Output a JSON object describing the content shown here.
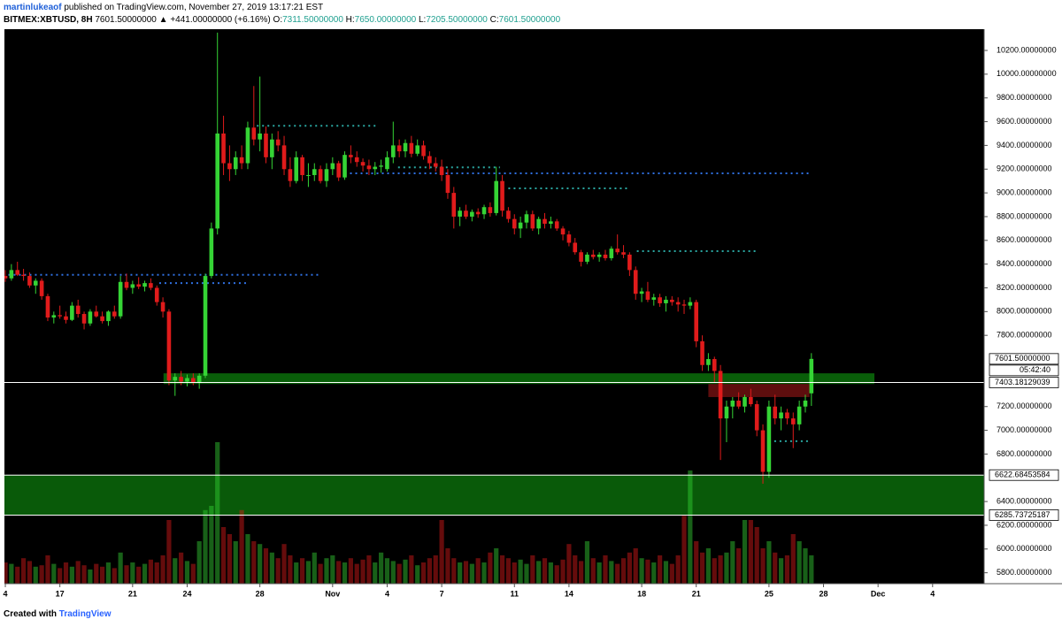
{
  "header": {
    "author": "martinlukeaof",
    "byline": "published on TradingView.com, November 27, 2019 13:17:21 EST",
    "symbol": "BITMEX:XBTUSD, 8H",
    "last": "7601.50000000",
    "change": "▲ +441.00000000 (+6.16%)",
    "ohlc": [
      {
        "label": "O:",
        "value": "7311.50000000"
      },
      {
        "label": "H:",
        "value": "7650.00000000"
      },
      {
        "label": "L:",
        "value": "7205.50000000"
      },
      {
        "label": "C:",
        "value": "7601.50000000"
      }
    ]
  },
  "footer": {
    "text": "Created with",
    "brand": "TradingView"
  },
  "chart_data": {
    "type": "candlestick",
    "up_color": "#35d435",
    "down_color": "#e01b1b",
    "ylim": [
      5708,
      10379
    ],
    "xlim": [
      -0.15,
      161.5
    ],
    "yticks": [
      {
        "value": 10200,
        "label": "10200.00000000"
      },
      {
        "value": 10000,
        "label": "10000.00000000"
      },
      {
        "value": 9800,
        "label": "9800.00000000"
      },
      {
        "value": 9600,
        "label": "9600.00000000"
      },
      {
        "value": 9400,
        "label": "9400.00000000"
      },
      {
        "value": 9200,
        "label": "9200.00000000"
      },
      {
        "value": 9000,
        "label": "9000.00000000"
      },
      {
        "value": 8800,
        "label": "8800.00000000"
      },
      {
        "value": 8600,
        "label": "8600.00000000"
      },
      {
        "value": 8400,
        "label": "8400.00000000"
      },
      {
        "value": 8200,
        "label": "8200.00000000"
      },
      {
        "value": 8000,
        "label": "8000.00000000"
      },
      {
        "value": 7800,
        "label": "7800.00000000"
      },
      {
        "value": 7200,
        "label": "7200.00000000"
      },
      {
        "value": 7000,
        "label": "7000.00000000"
      },
      {
        "value": 6800,
        "label": "6800.00000000"
      },
      {
        "value": 6400,
        "label": "6400.00000000"
      },
      {
        "value": 6200,
        "label": "6200.00000000"
      },
      {
        "value": 6000,
        "label": "6000.00000000"
      },
      {
        "value": 5800,
        "label": "5800.00000000"
      }
    ],
    "xticks": [
      {
        "value": 0,
        "label": "4"
      },
      {
        "value": 9,
        "label": "17"
      },
      {
        "value": 21,
        "label": "21"
      },
      {
        "value": 30,
        "label": "24"
      },
      {
        "value": 42,
        "label": "28"
      },
      {
        "value": 54,
        "label": "Nov"
      },
      {
        "value": 63,
        "label": "4"
      },
      {
        "value": 72,
        "label": "7"
      },
      {
        "value": 84,
        "label": "11"
      },
      {
        "value": 93,
        "label": "14"
      },
      {
        "value": 105,
        "label": "18"
      },
      {
        "value": 114,
        "label": "21"
      },
      {
        "value": 126,
        "label": "25"
      },
      {
        "value": 135,
        "label": "28"
      },
      {
        "value": 144,
        "label": "Dec"
      },
      {
        "value": 153,
        "label": "4"
      }
    ],
    "candles": [
      [
        8300,
        8350,
        8250,
        8280
      ],
      [
        8280,
        8400,
        8260,
        8350
      ],
      [
        8350,
        8420,
        8300,
        8310
      ],
      [
        8310,
        8360,
        8260,
        8300
      ],
      [
        8300,
        8330,
        8200,
        8220
      ],
      [
        8220,
        8280,
        8150,
        8260
      ],
      [
        8260,
        8280,
        8100,
        8130
      ],
      [
        8130,
        8150,
        7920,
        7950
      ],
      [
        7950,
        8000,
        7900,
        7970
      ],
      [
        7970,
        8050,
        7940,
        7960
      ],
      [
        7960,
        8000,
        7900,
        7930
      ],
      [
        7930,
        8080,
        7920,
        8050
      ],
      [
        8050,
        8100,
        7950,
        7980
      ],
      [
        7980,
        8000,
        7850,
        7900
      ],
      [
        7900,
        8020,
        7880,
        8000
      ],
      [
        8000,
        8050,
        7950,
        7960
      ],
      [
        7960,
        8000,
        7900,
        7920
      ],
      [
        7920,
        8010,
        7880,
        8000
      ],
      [
        8000,
        8050,
        7940,
        7960
      ],
      [
        7960,
        8300,
        7940,
        8250
      ],
      [
        8250,
        8320,
        8180,
        8200
      ],
      [
        8200,
        8260,
        8150,
        8230
      ],
      [
        8230,
        8290,
        8190,
        8210
      ],
      [
        8210,
        8260,
        8170,
        8240
      ],
      [
        8240,
        8280,
        8180,
        8200
      ],
      [
        8200,
        8220,
        8050,
        8080
      ],
      [
        8080,
        8120,
        7950,
        8000
      ],
      [
        8000,
        8020,
        7380,
        7420
      ],
      [
        7420,
        7480,
        7290,
        7450
      ],
      [
        7450,
        7500,
        7380,
        7410
      ],
      [
        7410,
        7470,
        7370,
        7440
      ],
      [
        7440,
        7480,
        7380,
        7400
      ],
      [
        7400,
        7480,
        7350,
        7460
      ],
      [
        7460,
        8320,
        7440,
        8300
      ],
      [
        8300,
        8750,
        8280,
        8700
      ],
      [
        8700,
        10350,
        8650,
        9500
      ],
      [
        9500,
        9650,
        9150,
        9250
      ],
      [
        9250,
        9400,
        9100,
        9200
      ],
      [
        9200,
        9350,
        9150,
        9300
      ],
      [
        9300,
        9400,
        9200,
        9250
      ],
      [
        9250,
        9600,
        9200,
        9550
      ],
      [
        9550,
        9900,
        9400,
        9450
      ],
      [
        9450,
        9980,
        9350,
        9500
      ],
      [
        9500,
        9560,
        9250,
        9300
      ],
      [
        9300,
        9500,
        9200,
        9450
      ],
      [
        9450,
        9520,
        9350,
        9400
      ],
      [
        9400,
        9480,
        9150,
        9200
      ],
      [
        9200,
        9300,
        9050,
        9100
      ],
      [
        9100,
        9350,
        9080,
        9300
      ],
      [
        9300,
        9320,
        9100,
        9150
      ],
      [
        9150,
        9250,
        9050,
        9150
      ],
      [
        9150,
        9250,
        9100,
        9200
      ],
      [
        9200,
        9230,
        9080,
        9100
      ],
      [
        9100,
        9250,
        9050,
        9200
      ],
      [
        9200,
        9300,
        9150,
        9250
      ],
      [
        9250,
        9270,
        9100,
        9130
      ],
      [
        9130,
        9350,
        9110,
        9320
      ],
      [
        9320,
        9400,
        9250,
        9300
      ],
      [
        9300,
        9350,
        9220,
        9260
      ],
      [
        9260,
        9290,
        9180,
        9230
      ],
      [
        9230,
        9280,
        9150,
        9200
      ],
      [
        9200,
        9260,
        9150,
        9220
      ],
      [
        9220,
        9280,
        9170,
        9230
      ],
      [
        9200,
        9350,
        9180,
        9300
      ],
      [
        9300,
        9600,
        9250,
        9400
      ],
      [
        9400,
        9450,
        9300,
        9350
      ],
      [
        9350,
        9450,
        9300,
        9420
      ],
      [
        9420,
        9480,
        9300,
        9330
      ],
      [
        9330,
        9450,
        9310,
        9400
      ],
      [
        9400,
        9440,
        9280,
        9310
      ],
      [
        9310,
        9350,
        9200,
        9250
      ],
      [
        9250,
        9300,
        9180,
        9220
      ],
      [
        9220,
        9280,
        9100,
        9150
      ],
      [
        9150,
        9200,
        8950,
        9000
      ],
      [
        9000,
        9050,
        8700,
        8800
      ],
      [
        8800,
        8880,
        8720,
        8850
      ],
      [
        8850,
        8900,
        8780,
        8800
      ],
      [
        8800,
        8860,
        8760,
        8840
      ],
      [
        8840,
        8870,
        8790,
        8820
      ],
      [
        8820,
        8900,
        8780,
        8880
      ],
      [
        8880,
        8920,
        8800,
        8830
      ],
      [
        8830,
        9220,
        8810,
        9100
      ],
      [
        9100,
        9150,
        8800,
        8850
      ],
      [
        8850,
        8880,
        8750,
        8780
      ],
      [
        8780,
        8820,
        8650,
        8700
      ],
      [
        8700,
        8800,
        8620,
        8750
      ],
      [
        8750,
        8850,
        8700,
        8820
      ],
      [
        8820,
        8850,
        8680,
        8700
      ],
      [
        8700,
        8800,
        8650,
        8780
      ],
      [
        8780,
        8830,
        8700,
        8740
      ],
      [
        8740,
        8800,
        8700,
        8760
      ],
      [
        8760,
        8780,
        8680,
        8700
      ],
      [
        8700,
        8720,
        8600,
        8650
      ],
      [
        8650,
        8680,
        8550,
        8580
      ],
      [
        8580,
        8620,
        8480,
        8500
      ],
      [
        8500,
        8520,
        8380,
        8420
      ],
      [
        8420,
        8500,
        8400,
        8480
      ],
      [
        8480,
        8520,
        8440,
        8460
      ],
      [
        8460,
        8500,
        8420,
        8480
      ],
      [
        8480,
        8520,
        8430,
        8450
      ],
      [
        8450,
        8550,
        8430,
        8530
      ],
      [
        8530,
        8650,
        8480,
        8500
      ],
      [
        8500,
        8560,
        8450,
        8480
      ],
      [
        8480,
        8500,
        8300,
        8350
      ],
      [
        8350,
        8380,
        8100,
        8150
      ],
      [
        8150,
        8200,
        8080,
        8170
      ],
      [
        8170,
        8250,
        8080,
        8100
      ],
      [
        8100,
        8150,
        8050,
        8120
      ],
      [
        8120,
        8150,
        8040,
        8070
      ],
      [
        8070,
        8130,
        8000,
        8100
      ],
      [
        8100,
        8130,
        8050,
        8080
      ],
      [
        8080,
        8120,
        8000,
        8060
      ],
      [
        8060,
        8100,
        7980,
        8050
      ],
      [
        8050,
        8120,
        8020,
        8080
      ],
      [
        8080,
        8100,
        7700,
        7750
      ],
      [
        7750,
        7800,
        7500,
        7550
      ],
      [
        7550,
        7650,
        7500,
        7600
      ],
      [
        7600,
        7620,
        7400,
        7500
      ],
      [
        7500,
        7550,
        6750,
        7100
      ],
      [
        7100,
        7250,
        6900,
        7200
      ],
      [
        7200,
        7280,
        7100,
        7250
      ],
      [
        7250,
        7320,
        7180,
        7200
      ],
      [
        7200,
        7300,
        7150,
        7280
      ],
      [
        7280,
        7350,
        7200,
        7220
      ],
      [
        7220,
        7250,
        6950,
        7000
      ],
      [
        7000,
        7050,
        6550,
        6650
      ],
      [
        6650,
        7250,
        6600,
        7200
      ],
      [
        7200,
        7300,
        7050,
        7100
      ],
      [
        7100,
        7200,
        7000,
        7150
      ],
      [
        7150,
        7180,
        7050,
        7100
      ],
      [
        7100,
        7150,
        6850,
        7050
      ],
      [
        7050,
        7250,
        7000,
        7200
      ],
      [
        7200,
        7300,
        7150,
        7250
      ],
      [
        7311.5,
        7650,
        7205.5,
        7601.5
      ]
    ],
    "volumes": [
      15,
      14,
      12,
      18,
      16,
      12,
      13,
      20,
      14,
      11,
      15,
      12,
      16,
      13,
      10,
      14,
      12,
      15,
      11,
      22,
      13,
      15,
      12,
      14,
      17,
      15,
      20,
      45,
      18,
      22,
      16,
      14,
      30,
      52,
      55,
      100,
      40,
      35,
      30,
      52,
      35,
      30,
      28,
      25,
      22,
      18,
      28,
      20,
      15,
      18,
      16,
      22,
      14,
      18,
      20,
      16,
      15,
      18,
      14,
      17,
      20,
      15,
      22,
      18,
      16,
      14,
      17,
      20,
      13,
      15,
      18,
      20,
      45,
      25,
      18,
      15,
      16,
      14,
      18,
      15,
      22,
      25,
      20,
      18,
      15,
      17,
      14,
      20,
      16,
      18,
      15,
      13,
      17,
      28,
      20,
      16,
      30,
      18,
      15,
      20,
      16,
      14,
      18,
      22,
      25,
      18,
      17,
      15,
      20,
      16,
      14,
      20,
      48,
      80,
      30,
      22,
      25,
      18,
      20,
      22,
      30,
      25,
      45,
      45,
      40,
      25,
      30,
      22,
      18,
      20,
      35,
      30,
      25,
      20
    ],
    "zones": [
      {
        "top": 6622.68,
        "bottom": 6285.74,
        "start": -0.15,
        "end": 161.5,
        "color": "#0a6a0a"
      },
      {
        "top": 7480,
        "bottom": 7390,
        "start": 26.1,
        "end": 143.4,
        "color": "#0b6e0b"
      },
      {
        "top": 7390,
        "bottom": 7280,
        "start": 116,
        "end": 132.7,
        "color": "#6e1010"
      }
    ],
    "levels": [
      {
        "value": 8310,
        "start": 0.5,
        "end": 52,
        "color": "#2f6fe0"
      },
      {
        "value": 8240,
        "start": 25.4,
        "end": 40.3,
        "color": "#2f6fe0"
      },
      {
        "value": 9565,
        "start": 41.5,
        "end": 61.2,
        "color": "#2aa6a0"
      },
      {
        "value": 9215,
        "start": 64.8,
        "end": 81.6,
        "color": "#2aa6a0"
      },
      {
        "value": 9165,
        "start": 56,
        "end": 132.7,
        "color": "#2f6fe0"
      },
      {
        "value": 9038,
        "start": 83,
        "end": 102.8,
        "color": "#2aa6a0"
      },
      {
        "value": 8509,
        "start": 104.2,
        "end": 124,
        "color": "#2aa6a0"
      },
      {
        "value": 6908,
        "start": 126,
        "end": 132.7,
        "color": "#2aa6a0"
      }
    ],
    "price_tags": [
      {
        "value": 7601.5,
        "label": "7601.50000000",
        "sub": "05:42:40",
        "line": false
      },
      {
        "value": 7403.18129039,
        "label": "7403.18129039",
        "line": true
      },
      {
        "value": 6622.68453584,
        "label": "6622.68453584",
        "line": true
      },
      {
        "value": 6285.73725187,
        "label": "6285.73725187",
        "line": true
      }
    ]
  }
}
